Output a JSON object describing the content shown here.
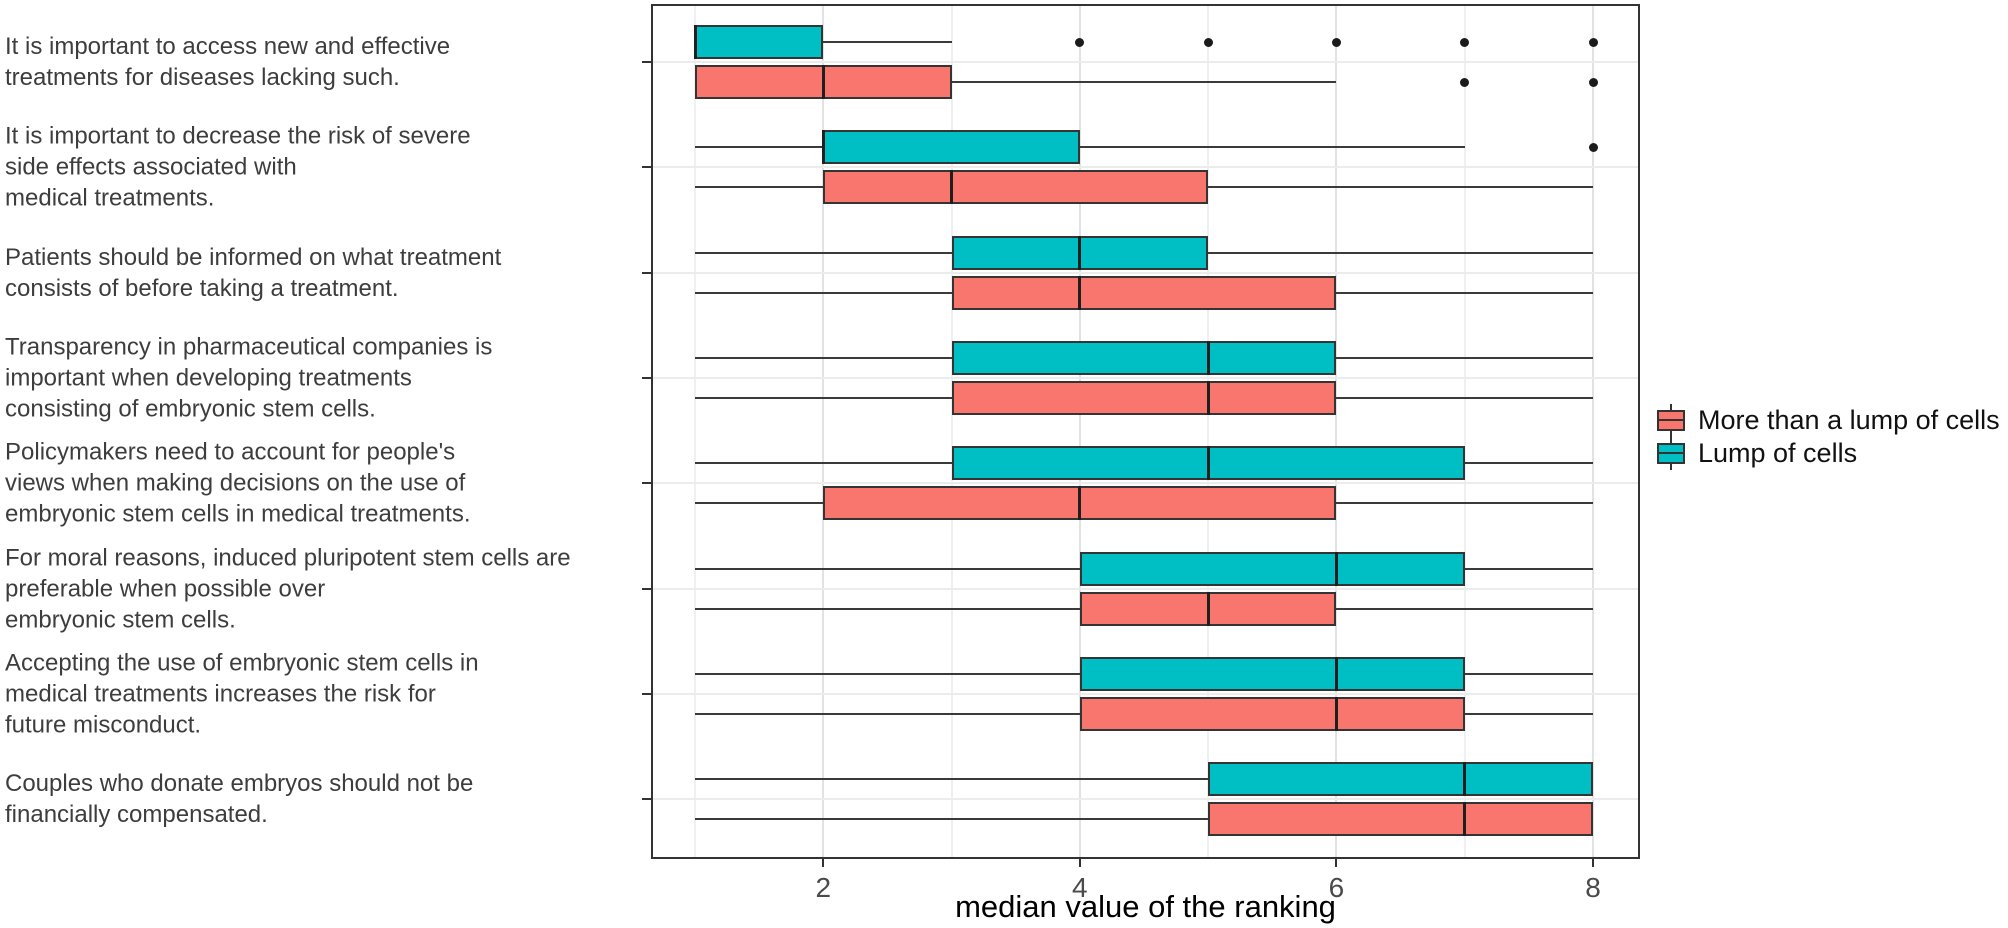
{
  "chart_data": {
    "type": "boxplot",
    "orientation": "horizontal",
    "xlabel": "median value of the ranking",
    "xlim": [
      1,
      8
    ],
    "x_major_ticks": [
      2,
      4,
      6,
      8
    ],
    "x_minor_ticks": [
      1,
      3,
      5,
      7
    ],
    "grid": "on",
    "legend_position": "right",
    "legend": [
      {
        "label": "More than a lump of cells",
        "color": "#F8766D"
      },
      {
        "label": "Lump of cells",
        "color": "#00BFC4"
      }
    ],
    "series_order_within_group_top_to_bottom": [
      "Lump of cells",
      "More than a lump of cells"
    ],
    "groups": [
      {
        "label_lines": [
          "It is important to access new and effective",
          "treatments for diseases lacking such."
        ],
        "boxes": [
          {
            "series": "Lump of cells",
            "color": "#00BFC4",
            "min": 1,
            "q1": 1,
            "median": 1,
            "q3": 2,
            "max": 3,
            "outliers": [
              4,
              5,
              6,
              7,
              8
            ]
          },
          {
            "series": "More than a lump of cells",
            "color": "#F8766D",
            "min": 1,
            "q1": 1,
            "median": 2,
            "q3": 3,
            "max": 6,
            "outliers": [
              7,
              8
            ]
          }
        ]
      },
      {
        "label_lines": [
          "It is important to decrease the risk of severe",
          "side effects associated with",
          "medical treatments."
        ],
        "boxes": [
          {
            "series": "Lump of cells",
            "color": "#00BFC4",
            "min": 1,
            "q1": 2,
            "median": 2,
            "q3": 4,
            "max": 7,
            "outliers": [
              8
            ]
          },
          {
            "series": "More than a lump of cells",
            "color": "#F8766D",
            "min": 1,
            "q1": 2,
            "median": 3,
            "q3": 5,
            "max": 8,
            "outliers": []
          }
        ]
      },
      {
        "label_lines": [
          "Patients should be informed on what treatment",
          "consists of before taking a treatment."
        ],
        "boxes": [
          {
            "series": "Lump of cells",
            "color": "#00BFC4",
            "min": 1,
            "q1": 3,
            "median": 4,
            "q3": 5,
            "max": 8,
            "outliers": []
          },
          {
            "series": "More than a lump of cells",
            "color": "#F8766D",
            "min": 1,
            "q1": 3,
            "median": 4,
            "q3": 6,
            "max": 8,
            "outliers": []
          }
        ]
      },
      {
        "label_lines": [
          "Transparency in pharmaceutical companies is",
          "important when developing treatments",
          "consisting of embryonic stem cells."
        ],
        "boxes": [
          {
            "series": "Lump of cells",
            "color": "#00BFC4",
            "min": 1,
            "q1": 3,
            "median": 5,
            "q3": 6,
            "max": 8,
            "outliers": []
          },
          {
            "series": "More than a lump of cells",
            "color": "#F8766D",
            "min": 1,
            "q1": 3,
            "median": 5,
            "q3": 6,
            "max": 8,
            "outliers": []
          }
        ]
      },
      {
        "label_lines": [
          "Policymakers need to account for people's",
          "views when making decisions on the use of",
          "embryonic stem cells in medical treatments."
        ],
        "boxes": [
          {
            "series": "Lump of cells",
            "color": "#00BFC4",
            "min": 1,
            "q1": 3,
            "median": 5,
            "q3": 7,
            "max": 8,
            "outliers": []
          },
          {
            "series": "More than a lump of cells",
            "color": "#F8766D",
            "min": 1,
            "q1": 2,
            "median": 4,
            "q3": 6,
            "max": 8,
            "outliers": []
          }
        ]
      },
      {
        "label_lines": [
          "For moral reasons, induced pluripotent stem cells are",
          "preferable when possible over",
          "embryonic stem cells."
        ],
        "boxes": [
          {
            "series": "Lump of cells",
            "color": "#00BFC4",
            "min": 1,
            "q1": 4,
            "median": 6,
            "q3": 7,
            "max": 8,
            "outliers": []
          },
          {
            "series": "More than a lump of cells",
            "color": "#F8766D",
            "min": 1,
            "q1": 4,
            "median": 5,
            "q3": 6,
            "max": 8,
            "outliers": []
          }
        ]
      },
      {
        "label_lines": [
          "Accepting the use of embryonic stem cells in",
          "medical treatments increases the risk for",
          "future misconduct."
        ],
        "boxes": [
          {
            "series": "Lump of cells",
            "color": "#00BFC4",
            "min": 1,
            "q1": 4,
            "median": 6,
            "q3": 7,
            "max": 8,
            "outliers": []
          },
          {
            "series": "More than a lump of cells",
            "color": "#F8766D",
            "min": 1,
            "q1": 4,
            "median": 6,
            "q3": 7,
            "max": 8,
            "outliers": []
          }
        ]
      },
      {
        "label_lines": [
          "Couples who donate embryos should not be",
          "financially compensated."
        ],
        "boxes": [
          {
            "series": "Lump of cells",
            "color": "#00BFC4",
            "min": 1,
            "q1": 5,
            "median": 7,
            "q3": 8,
            "max": 8,
            "outliers": []
          },
          {
            "series": "More than a lump of cells",
            "color": "#F8766D",
            "min": 1,
            "q1": 5,
            "median": 7,
            "q3": 8,
            "max": 8,
            "outliers": []
          }
        ]
      }
    ],
    "colors": {
      "grid_major": "#e2e2e2",
      "grid_minor": "#f0f0f0",
      "grid_horizontal": "#ececec",
      "box_border": "#343434",
      "median": "#1f1f1f",
      "outlier": "#1b1b1b",
      "axis_text": "#4a4a4a",
      "category_text": "#3d3d3d"
    }
  }
}
